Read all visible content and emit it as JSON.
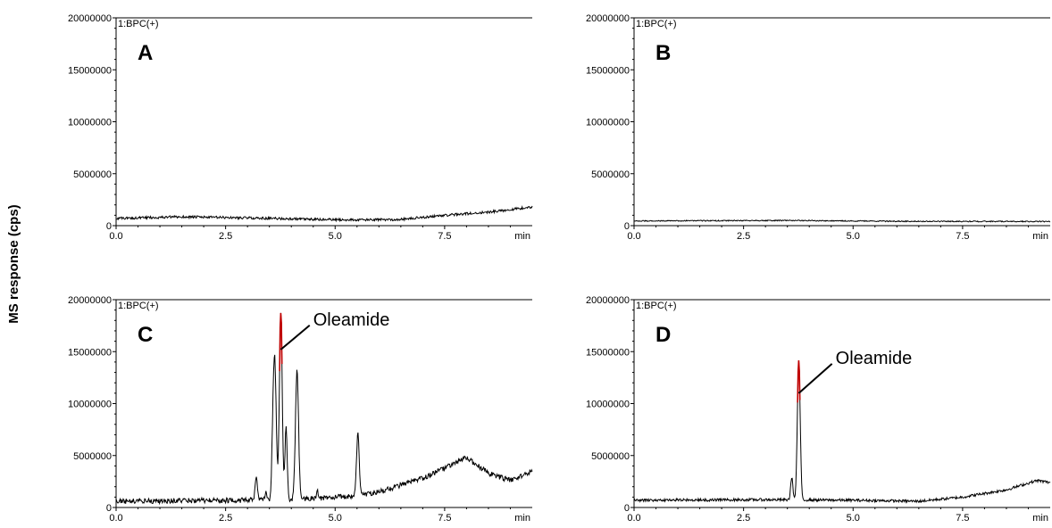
{
  "figure": {
    "ylabel": "MS response (cps)"
  },
  "chart_data": [
    {
      "type": "line",
      "panel_letter": "A",
      "header": "1:BPC(+)",
      "x_unit_label": "min",
      "xlim": [
        0,
        9.5
      ],
      "ylim": [
        0,
        20000000
      ],
      "xticks": [
        "0.0",
        "2.5",
        "5.0",
        "7.5"
      ],
      "yticks": [
        "0",
        "5000000",
        "10000000",
        "15000000",
        "20000000"
      ],
      "line_color": "#000000",
      "baseline_points": [
        [
          0,
          700000
        ],
        [
          1.5,
          850000
        ],
        [
          3,
          750000
        ],
        [
          4.5,
          600000
        ],
        [
          5.5,
          550000
        ],
        [
          6.5,
          600000
        ],
        [
          7.5,
          1000000
        ],
        [
          8.5,
          1300000
        ],
        [
          9.5,
          1800000
        ]
      ],
      "noise_amplitude": 120000,
      "peaks": [],
      "annotation": null
    },
    {
      "type": "line",
      "panel_letter": "B",
      "header": "1:BPC(+)",
      "x_unit_label": "min",
      "xlim": [
        0,
        9.5
      ],
      "ylim": [
        0,
        20000000
      ],
      "xticks": [
        "0.0",
        "2.5",
        "5.0",
        "7.5"
      ],
      "yticks": [
        "0",
        "5000000",
        "10000000",
        "15000000",
        "20000000"
      ],
      "line_color": "#000000",
      "baseline_points": [
        [
          0,
          450000
        ],
        [
          3.5,
          500000
        ],
        [
          6,
          420000
        ],
        [
          9.5,
          400000
        ]
      ],
      "noise_amplitude": 50000,
      "peaks": [],
      "annotation": null
    },
    {
      "type": "line",
      "panel_letter": "C",
      "header": "1:BPC(+)",
      "x_unit_label": "min",
      "xlim": [
        0,
        9.5
      ],
      "ylim": [
        0,
        20000000
      ],
      "xticks": [
        "0.0",
        "2.5",
        "5.0",
        "7.5"
      ],
      "yticks": [
        "0",
        "5000000",
        "10000000",
        "15000000",
        "20000000"
      ],
      "line_color": "#000000",
      "highlight_color": "#c00000",
      "baseline_points": [
        [
          0,
          600000
        ],
        [
          3,
          700000
        ],
        [
          4.3,
          800000
        ],
        [
          5.4,
          1100000
        ],
        [
          6,
          1500000
        ],
        [
          7,
          2800000
        ],
        [
          8,
          4800000
        ],
        [
          8.5,
          3300000
        ],
        [
          9,
          2600000
        ],
        [
          9.5,
          3500000
        ]
      ],
      "noise_amplitude": 250000,
      "peaks": [
        {
          "x": 3.2,
          "height": 2200000,
          "width": 0.025
        },
        {
          "x": 3.42,
          "height": 700000,
          "width": 0.02
        },
        {
          "x": 3.57,
          "height": 2500000,
          "width": 0.025
        },
        {
          "x": 3.62,
          "height": 13600000,
          "width": 0.035
        },
        {
          "x": 3.76,
          "height": 18200000,
          "width": 0.032,
          "highlight": true
        },
        {
          "x": 3.88,
          "height": 7100000,
          "width": 0.025
        },
        {
          "x": 4.13,
          "height": 12500000,
          "width": 0.035
        },
        {
          "x": 4.6,
          "height": 600000,
          "width": 0.025
        },
        {
          "x": 5.52,
          "height": 6000000,
          "width": 0.03
        }
      ],
      "annotation": {
        "text": "Oleamide",
        "peak_x": 3.76,
        "peak_y": 15200000,
        "label_x": 4.5,
        "label_y": 17700000
      }
    },
    {
      "type": "line",
      "panel_letter": "D",
      "header": "1:BPC(+)",
      "x_unit_label": "min",
      "xlim": [
        0,
        9.5
      ],
      "ylim": [
        0,
        20000000
      ],
      "xticks": [
        "0.0",
        "2.5",
        "5.0",
        "7.5"
      ],
      "yticks": [
        "0",
        "5000000",
        "10000000",
        "15000000",
        "20000000"
      ],
      "line_color": "#000000",
      "highlight_color": "#c00000",
      "baseline_points": [
        [
          0,
          700000
        ],
        [
          3,
          750000
        ],
        [
          5,
          700000
        ],
        [
          6.5,
          600000
        ],
        [
          7.5,
          1000000
        ],
        [
          8.5,
          1700000
        ],
        [
          9.2,
          2600000
        ],
        [
          9.5,
          2400000
        ]
      ],
      "noise_amplitude": 130000,
      "peaks": [
        {
          "x": 3.6,
          "height": 2200000,
          "width": 0.025
        },
        {
          "x": 3.76,
          "height": 13500000,
          "width": 0.032,
          "highlight": true
        }
      ],
      "annotation": {
        "text": "Oleamide",
        "peak_x": 3.76,
        "peak_y": 11000000,
        "label_x": 4.6,
        "label_y": 14000000
      }
    }
  ]
}
